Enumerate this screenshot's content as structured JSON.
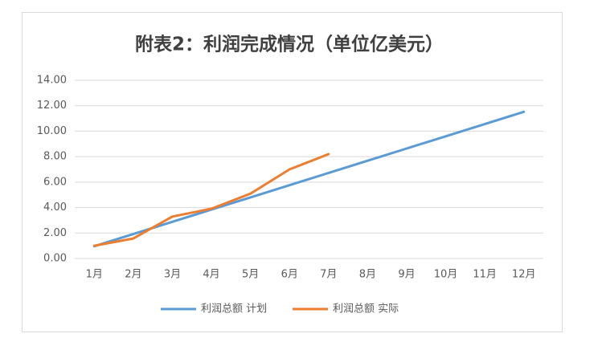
{
  "chart_data": {
    "type": "line",
    "title": "附表2：利润完成情况（单位亿美元）",
    "categories": [
      "1月",
      "2月",
      "3月",
      "4月",
      "5月",
      "6月",
      "7月",
      "8月",
      "9月",
      "10月",
      "11月",
      "12月"
    ],
    "series": [
      {
        "name": "利润总额 计划",
        "color": "#5b9bd5",
        "values": [
          0.96,
          1.92,
          2.88,
          3.84,
          4.8,
          5.76,
          6.72,
          7.68,
          8.64,
          9.6,
          10.56,
          11.52
        ]
      },
      {
        "name": "利润总额 实际",
        "color": "#ed7d31",
        "values": [
          1.0,
          1.57,
          3.29,
          3.91,
          5.09,
          7.0,
          8.2,
          null,
          null,
          null,
          null,
          null
        ]
      }
    ],
    "ylim": [
      0,
      14
    ],
    "yticks": [
      {
        "value": 0,
        "label": "0.00"
      },
      {
        "value": 2,
        "label": "2.00"
      },
      {
        "value": 4,
        "label": "4.00"
      },
      {
        "value": 6,
        "label": "6.00"
      },
      {
        "value": 8,
        "label": "8.00"
      },
      {
        "value": 10,
        "label": "10.00"
      },
      {
        "value": 12,
        "label": "12.00"
      },
      {
        "value": 14,
        "label": "14.00"
      }
    ],
    "grid": true,
    "legend": "bottom"
  }
}
